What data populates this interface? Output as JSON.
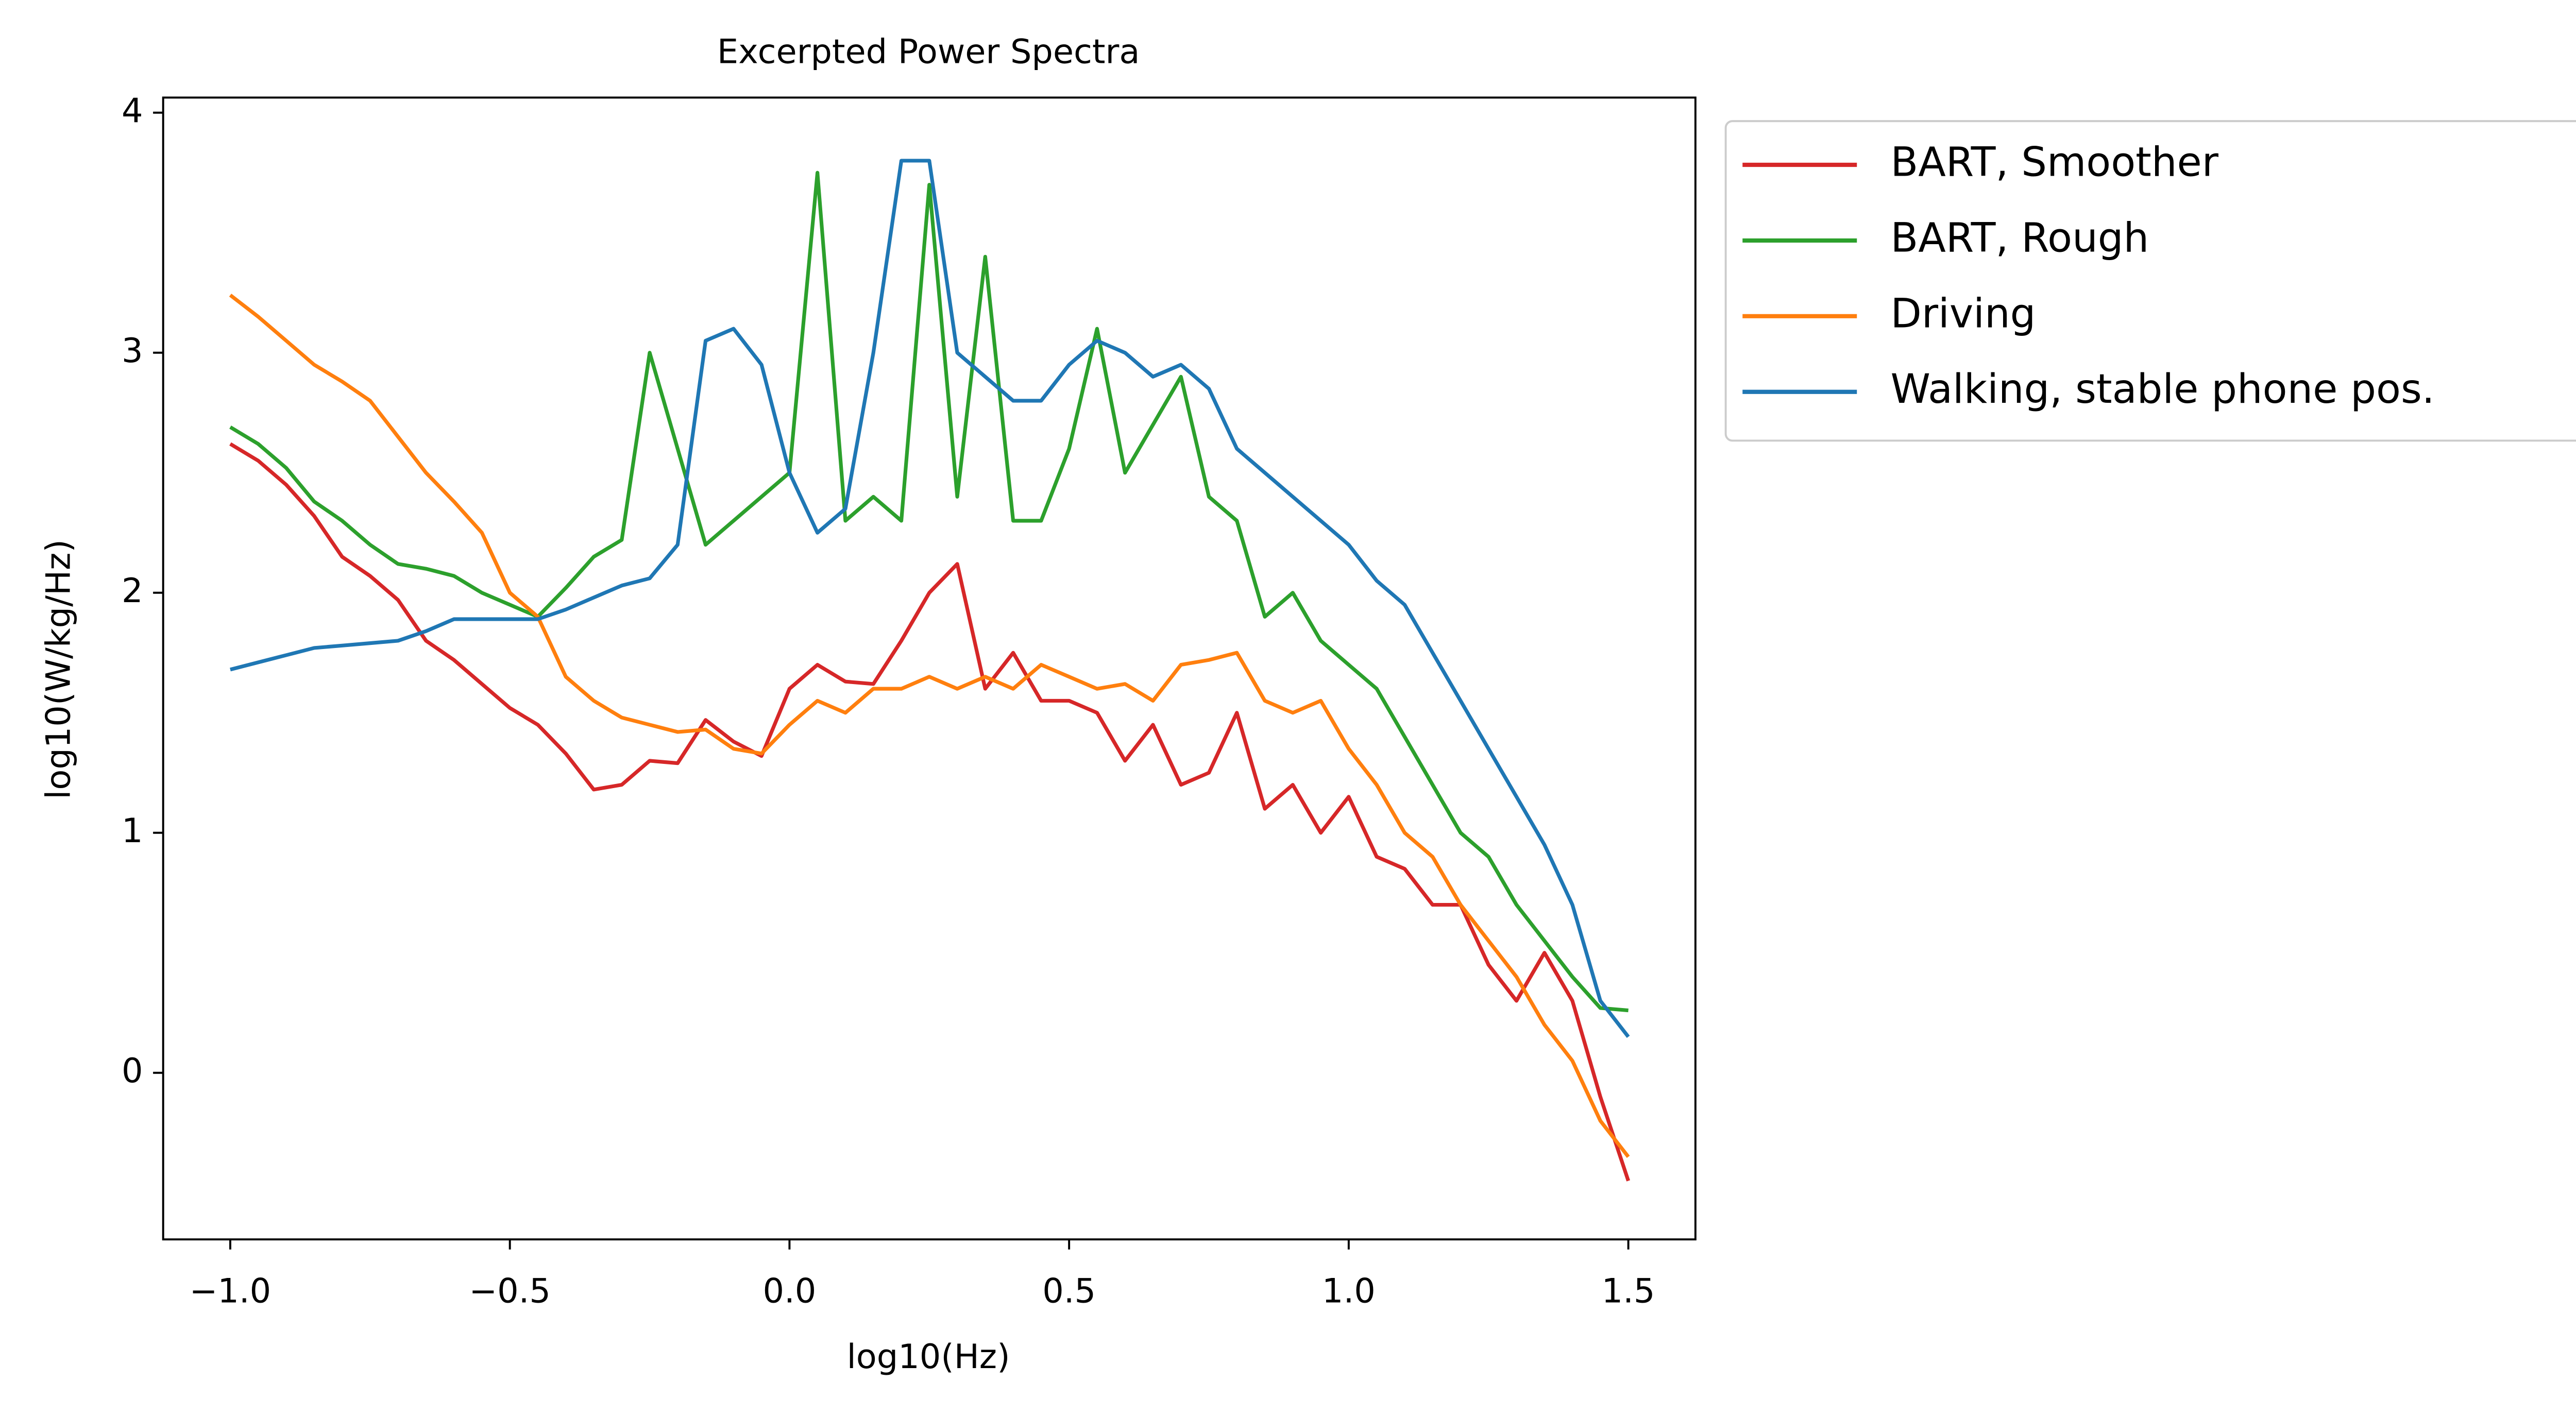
{
  "chart_data": {
    "type": "line",
    "title": "Excerpted Power Spectra",
    "xlabel": "log10(Hz)",
    "ylabel": "log10(W/kg/Hz)",
    "x": [
      -1.0,
      -0.95,
      -0.9,
      -0.85,
      -0.8,
      -0.75,
      -0.7,
      -0.65,
      -0.6,
      -0.55,
      -0.5,
      -0.45,
      -0.4,
      -0.35,
      -0.3,
      -0.25,
      -0.2,
      -0.15,
      -0.1,
      -0.05,
      0.0,
      0.05,
      0.1,
      0.15,
      0.2,
      0.25,
      0.3,
      0.35,
      0.4,
      0.45,
      0.5,
      0.55,
      0.6,
      0.65,
      0.7,
      0.75,
      0.8,
      0.85,
      0.9,
      0.95,
      1.0,
      1.05,
      1.1,
      1.15,
      1.2,
      1.25,
      1.3,
      1.35,
      1.4,
      1.45,
      1.5
    ],
    "series": [
      {
        "name": "BART, Smoother",
        "color": "#d62728",
        "values": [
          2.62,
          2.55,
          2.45,
          2.32,
          2.15,
          2.07,
          1.97,
          1.8,
          1.72,
          1.62,
          1.52,
          1.45,
          1.33,
          1.18,
          1.2,
          1.3,
          1.29,
          1.47,
          1.38,
          1.32,
          1.6,
          1.7,
          1.63,
          1.62,
          1.8,
          2.0,
          2.12,
          1.6,
          1.75,
          1.55,
          1.55,
          1.5,
          1.3,
          1.45,
          1.2,
          1.25,
          1.5,
          1.1,
          1.2,
          1.0,
          1.15,
          0.9,
          0.85,
          0.7,
          0.7,
          0.45,
          0.3,
          0.5,
          0.3,
          -0.1,
          -0.45
        ]
      },
      {
        "name": "BART, Rough",
        "color": "#2ca02c",
        "values": [
          2.69,
          2.62,
          2.52,
          2.38,
          2.3,
          2.2,
          2.12,
          2.1,
          2.07,
          2.0,
          1.95,
          1.9,
          2.02,
          2.15,
          2.22,
          3.0,
          2.6,
          2.2,
          2.3,
          2.4,
          2.5,
          3.75,
          2.3,
          2.4,
          2.3,
          3.7,
          2.4,
          3.4,
          2.3,
          2.3,
          2.6,
          3.1,
          2.5,
          2.7,
          2.9,
          2.4,
          2.3,
          1.9,
          2.0,
          1.8,
          1.7,
          1.6,
          1.4,
          1.2,
          1.0,
          0.9,
          0.7,
          0.55,
          0.4,
          0.27,
          0.26
        ]
      },
      {
        "name": "Driving",
        "color": "#ff7f0e",
        "values": [
          3.24,
          3.15,
          3.05,
          2.95,
          2.88,
          2.8,
          2.65,
          2.5,
          2.38,
          2.25,
          2.0,
          1.9,
          1.65,
          1.55,
          1.48,
          1.45,
          1.42,
          1.43,
          1.35,
          1.33,
          1.45,
          1.55,
          1.5,
          1.6,
          1.6,
          1.65,
          1.6,
          1.65,
          1.6,
          1.7,
          1.65,
          1.6,
          1.62,
          1.55,
          1.7,
          1.72,
          1.75,
          1.55,
          1.5,
          1.55,
          1.35,
          1.2,
          1.0,
          0.9,
          0.7,
          0.55,
          0.4,
          0.2,
          0.05,
          -0.2,
          -0.35
        ]
      },
      {
        "name": "Walking, stable phone pos.",
        "color": "#1f77b4",
        "values": [
          1.68,
          1.71,
          1.74,
          1.77,
          1.78,
          1.79,
          1.8,
          1.84,
          1.89,
          1.89,
          1.89,
          1.89,
          1.93,
          1.98,
          2.03,
          2.06,
          2.2,
          3.05,
          3.1,
          2.95,
          2.5,
          2.25,
          2.35,
          3.0,
          3.8,
          3.8,
          3.0,
          2.9,
          2.8,
          2.8,
          2.95,
          3.05,
          3.0,
          2.9,
          2.95,
          2.85,
          2.6,
          2.5,
          2.4,
          2.3,
          2.2,
          2.05,
          1.95,
          1.75,
          1.55,
          1.35,
          1.15,
          0.95,
          0.7,
          0.3,
          0.15
        ]
      }
    ],
    "xlim": [
      -1.12,
      1.62
    ],
    "ylim": [
      -0.694,
      4.063
    ],
    "xticks": [
      {
        "value": -1.0,
        "label": "−1.0"
      },
      {
        "value": -0.5,
        "label": "−0.5"
      },
      {
        "value": 0.0,
        "label": "0.0"
      },
      0.5,
      {
        "value": 1.0,
        "label": "1.0"
      },
      1.5
    ],
    "yticks": [
      0,
      1,
      2,
      3,
      4
    ],
    "grid": false,
    "legend": "outside upper right"
  }
}
